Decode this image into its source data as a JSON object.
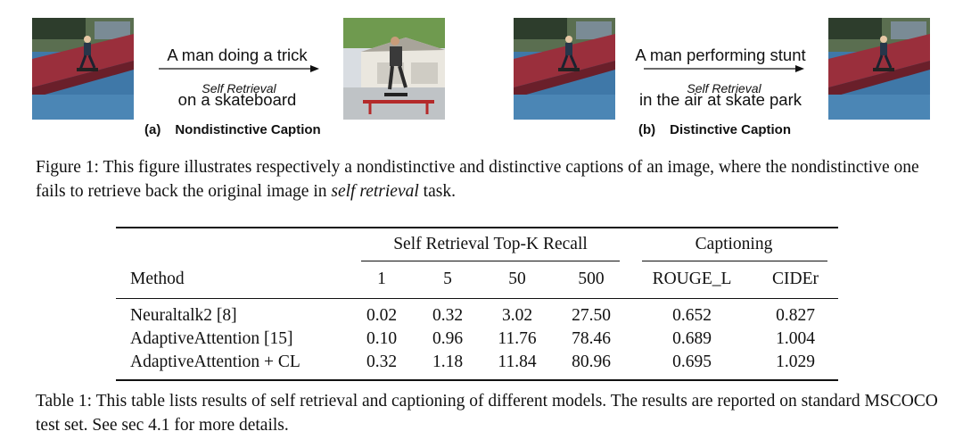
{
  "figure": {
    "panel_a": {
      "caption_line1": "A man doing a trick",
      "caption_line2": "on a skateboard",
      "arrow_label": "Self Retrieval",
      "tag": "(a)",
      "title": "Nondistinctive Caption"
    },
    "panel_b": {
      "caption_line1": "A man performing stunt",
      "caption_line2": "in the air at skate park",
      "arrow_label": "Self Retrieval",
      "tag": "(b)",
      "title": "Distinctive Caption"
    },
    "caption": {
      "label": "Figure 1:",
      "text_before": " This figure illustrates respectively a nondistinctive and distinctive captions of an image, where the nondistinctive one fails to retrieve back the original image in ",
      "italic": "self retrieval",
      "text_after": " task."
    }
  },
  "table": {
    "group_headers": {
      "retrieval": "Self Retrieval Top-K Recall",
      "captioning": "Captioning"
    },
    "columns": [
      "Method",
      "1",
      "5",
      "50",
      "500",
      "ROUGE_L",
      "CIDEr"
    ],
    "rows": [
      [
        "Neuraltalk2 [8]",
        "0.02",
        "0.32",
        "3.02",
        "27.50",
        "0.652",
        "0.827"
      ],
      [
        "AdaptiveAttention [15]",
        "0.10",
        "0.96",
        "11.76",
        "78.46",
        "0.689",
        "1.004"
      ],
      [
        "AdaptiveAttention + CL",
        "0.32",
        "1.18",
        "11.84",
        "80.96",
        "0.695",
        "1.029"
      ]
    ],
    "caption": {
      "label": "Table 1:",
      "text": " This table lists results of self retrieval and captioning of different models. The results are reported on standard MSCOCO test set. See sec 4.1 for more details."
    }
  }
}
